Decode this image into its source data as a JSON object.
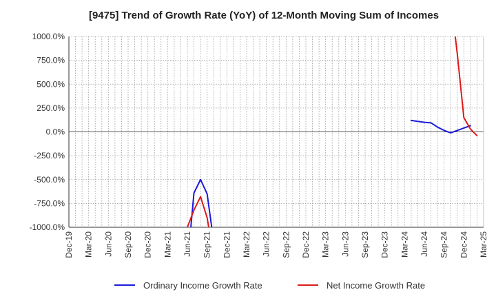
{
  "chart_data": {
    "type": "line",
    "title": "[9475]  Trend of Growth Rate (YoY) of 12-Month Moving Sum of Incomes",
    "xlabel": "",
    "ylabel": "",
    "x": [
      "Dec-19",
      "Jan-20",
      "Feb-20",
      "Mar-20",
      "Apr-20",
      "May-20",
      "Jun-20",
      "Jul-20",
      "Aug-20",
      "Sep-20",
      "Oct-20",
      "Nov-20",
      "Dec-20",
      "Jan-21",
      "Feb-21",
      "Mar-21",
      "Apr-21",
      "May-21",
      "Jun-21",
      "Jul-21",
      "Aug-21",
      "Sep-21",
      "Oct-21",
      "Nov-21",
      "Dec-21",
      "Jan-22",
      "Feb-22",
      "Mar-22",
      "Apr-22",
      "May-22",
      "Jun-22",
      "Jul-22",
      "Aug-22",
      "Sep-22",
      "Oct-22",
      "Nov-22",
      "Dec-22",
      "Jan-23",
      "Feb-23",
      "Mar-23",
      "Apr-23",
      "May-23",
      "Jun-23",
      "Jul-23",
      "Aug-23",
      "Sep-23",
      "Oct-23",
      "Nov-23",
      "Dec-23",
      "Jan-24",
      "Feb-24",
      "Mar-24",
      "Apr-24",
      "May-24",
      "Jun-24",
      "Jul-24",
      "Aug-24",
      "Sep-24",
      "Oct-24",
      "Nov-24",
      "Dec-24",
      "Jan-25",
      "Feb-25",
      "Mar-25"
    ],
    "x_tick_labels": [
      "Dec-19",
      "Mar-20",
      "Jun-20",
      "Sep-20",
      "Dec-20",
      "Mar-21",
      "Jun-21",
      "Sep-21",
      "Dec-21",
      "Mar-22",
      "Jun-22",
      "Sep-22",
      "Dec-22",
      "Mar-23",
      "Jun-23",
      "Sep-23",
      "Dec-23",
      "Mar-24",
      "Jun-24",
      "Sep-24",
      "Dec-24",
      "Mar-25"
    ],
    "y_tick_labels": [
      "1000.0%",
      "750.0%",
      "500.0%",
      "250.0%",
      "0.0%",
      "-250.0%",
      "-500.0%",
      "-750.0%",
      "-1000.0%"
    ],
    "y_ticks": [
      1000,
      750,
      500,
      250,
      0,
      -250,
      -500,
      -750,
      -1000
    ],
    "ylim": [
      -1000,
      1000
    ],
    "grid": true,
    "legend_position": "bottom",
    "series": [
      {
        "name": "Ordinary Income Growth Rate",
        "color": "#1a1adc",
        "values": [
          null,
          null,
          null,
          null,
          null,
          null,
          null,
          null,
          null,
          null,
          null,
          null,
          null,
          null,
          null,
          null,
          null,
          null,
          -1400,
          -640,
          -500,
          -650,
          -1150,
          null,
          null,
          null,
          null,
          null,
          null,
          null,
          null,
          null,
          null,
          null,
          null,
          null,
          null,
          null,
          null,
          null,
          null,
          null,
          null,
          null,
          null,
          null,
          null,
          null,
          null,
          null,
          null,
          null,
          120,
          110,
          100,
          95,
          50,
          15,
          -10,
          15,
          40,
          65,
          null,
          null
        ]
      },
      {
        "name": "Net Income Growth Rate",
        "color": "#dc1a1a",
        "values": [
          null,
          null,
          null,
          null,
          null,
          null,
          null,
          null,
          null,
          null,
          null,
          null,
          null,
          null,
          null,
          null,
          null,
          null,
          -1000,
          -820,
          -680,
          -900,
          -1300,
          null,
          null,
          null,
          null,
          null,
          null,
          null,
          null,
          null,
          null,
          null,
          null,
          null,
          null,
          null,
          null,
          null,
          null,
          null,
          null,
          null,
          null,
          null,
          null,
          null,
          null,
          null,
          null,
          null,
          null,
          null,
          null,
          null,
          null,
          null,
          1400,
          820,
          150,
          30,
          -40,
          null
        ]
      }
    ]
  }
}
